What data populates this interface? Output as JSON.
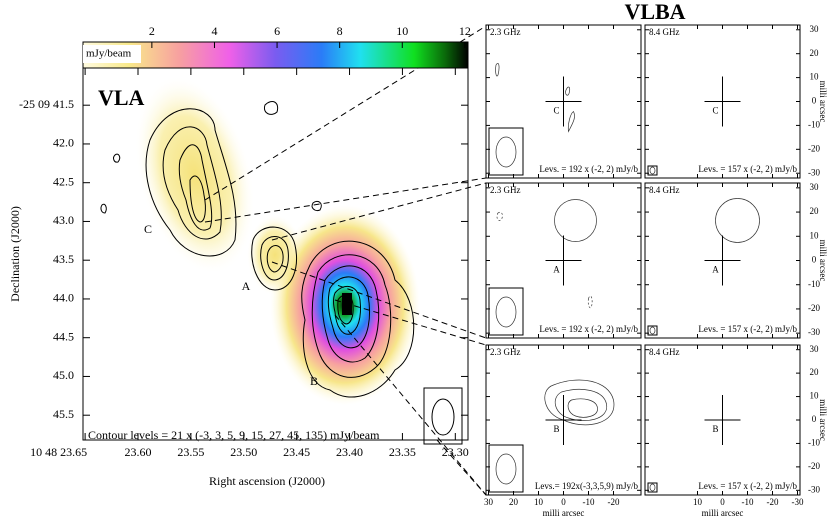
{
  "main_panel": {
    "title": "VLA",
    "colorbar": {
      "label": "mJy/beam",
      "lim": [
        -0.2,
        12.1
      ],
      "ticks": [
        2,
        4,
        6,
        8,
        10,
        12
      ]
    },
    "x_axis": {
      "label": "Right ascension (J2000)",
      "lim": [
        23.652,
        23.288
      ],
      "ticks": [
        {
          "value": 23.65,
          "label": "10 48 23.65"
        },
        {
          "value": 23.6,
          "label": "23.60"
        },
        23.55,
        {
          "value": 23.5,
          "label": "23.50"
        },
        23.45,
        {
          "value": 23.4,
          "label": "23.40"
        },
        23.35,
        {
          "value": 23.3,
          "label": "23.30"
        }
      ]
    },
    "y_axis": {
      "label": "Declination (J2000)",
      "lim": [
        41.02,
        45.82
      ],
      "ticks": [
        {
          "value": 41.5,
          "label": "-25 09 41.5"
        },
        {
          "value": 42,
          "label": "42.0"
        },
        42.5,
        {
          "value": 43,
          "label": "43.0"
        },
        43.5,
        {
          "value": 44,
          "label": "44.0"
        },
        44.5,
        {
          "value": 45,
          "label": "45.0"
        },
        45.5
      ]
    },
    "components": [
      "C",
      "A",
      "B"
    ],
    "contour_note": "Contour levels = 21 x (-3, 3, 5, 9, 15, 27, 45, 135) mJy/beam"
  },
  "vlba": {
    "title": "VLBA",
    "x_label": "milli arcsec",
    "y_label": "milli arcsec",
    "xlim": [
      31,
      -31
    ],
    "ylim": [
      -32,
      32
    ],
    "x_ticks_left": [
      30,
      20,
      10,
      0,
      -10,
      -20
    ],
    "x_ticks_right": [
      10,
      0,
      -10,
      -20,
      -30
    ],
    "y_ticks": [
      30,
      20,
      10,
      0,
      -10,
      -20,
      -30
    ],
    "panels": [
      {
        "freq": "2.3 GHz",
        "component": "C",
        "levels": "Levs. = 192 x (-2, 2) mJy/b"
      },
      {
        "freq": "8.4 GHz",
        "component": "C",
        "levels": "Levs. = 157 x (-2, 2) mJy/b"
      },
      {
        "freq": "2.3 GHz",
        "component": "A",
        "levels": "Levs. = 192 x (-2, 2) mJy/b"
      },
      {
        "freq": "8.4 GHz",
        "component": "A",
        "levels": "Levs. = 157 x (-2, 2) mJy/b"
      },
      {
        "freq": "2.3 GHz",
        "component": "B",
        "levels": "Levs.= 192x(-3,3,5,9) mJy/b"
      },
      {
        "freq": "8.4 GHz",
        "component": "B",
        "levels": "Levs. = 157 x (-2, 2) mJy/b"
      }
    ]
  }
}
